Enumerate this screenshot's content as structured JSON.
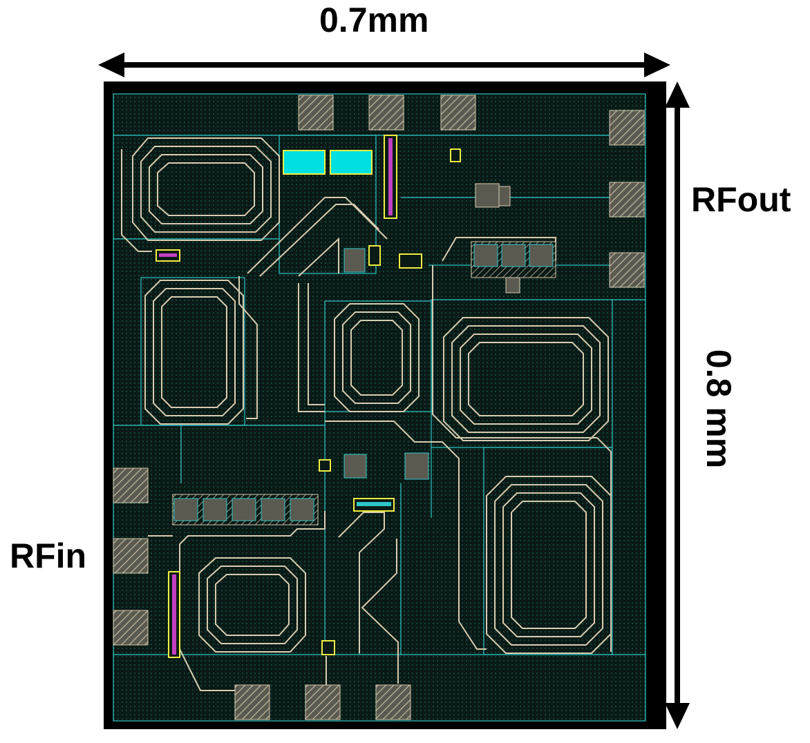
{
  "dimensions": {
    "width_label": "0.7mm",
    "height_label": "0.8 mm"
  },
  "ports": {
    "output_label": "RFout",
    "input_label": "RFin"
  },
  "colors": {
    "frame": "#000000",
    "substrate": "#0a1a16",
    "grid_dot": "#1f7a66",
    "route_line": "#2ec7c7",
    "metal_trace": "#d8ccb0",
    "pad_fill": "#8a8a80",
    "capacitor_fill": "#00e0e0",
    "via_yellow": "#f0f040",
    "via_magenta": "#c040c0"
  }
}
